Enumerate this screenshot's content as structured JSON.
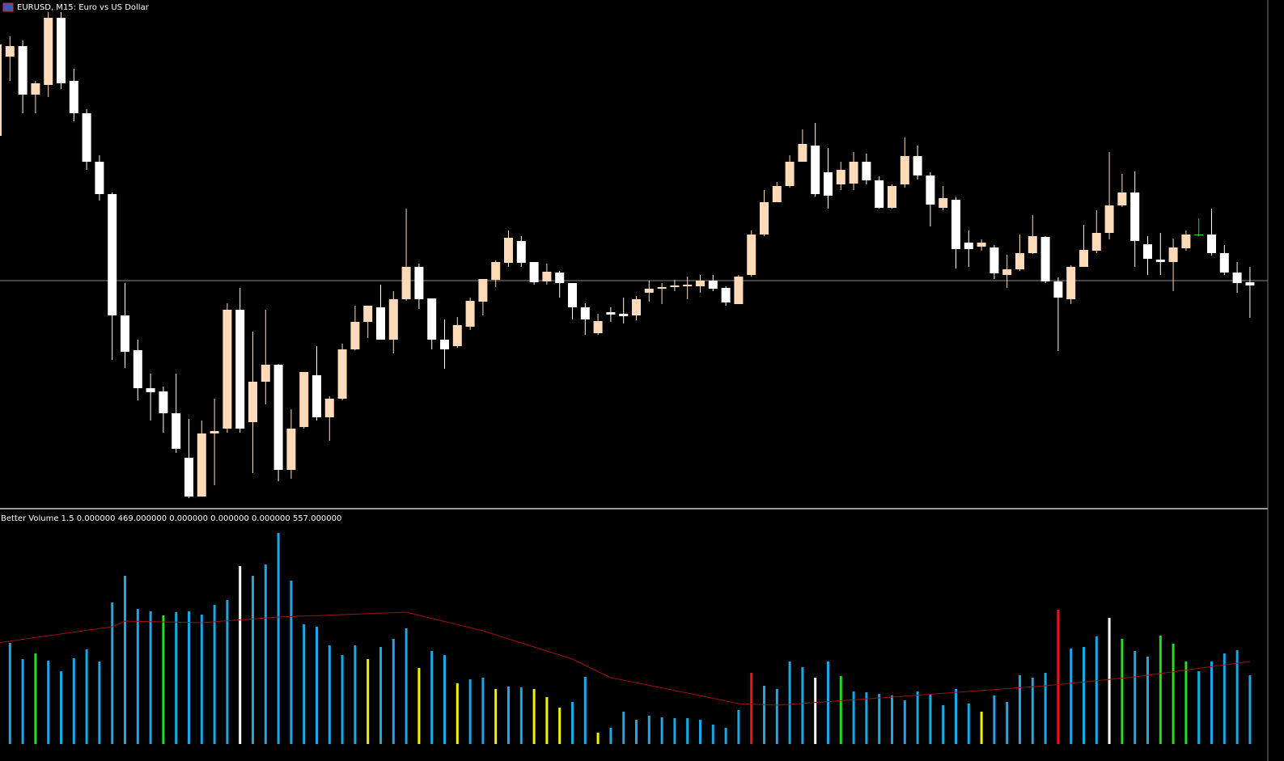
{
  "chart_data": [
    {
      "type": "candlestick",
      "title": "EURUSD, M15:  Euro vs US Dollar",
      "ylim": [
        0,
        630
      ],
      "up_color": "#ffdab9",
      "down_color": "#ffffff",
      "doji_color": "#22dd22",
      "price_line": 283,
      "candles": [
        [
          462,
          585,
          462,
          575
        ],
        [
          560,
          585,
          530,
          573
        ],
        [
          573,
          580,
          490,
          513
        ],
        [
          513,
          530,
          490,
          527
        ],
        [
          525,
          615,
          510,
          608
        ],
        [
          608,
          615,
          520,
          527
        ],
        [
          530,
          545,
          480,
          490
        ],
        [
          490,
          495,
          420,
          430
        ],
        [
          430,
          438,
          382,
          390
        ],
        [
          390,
          392,
          185,
          240
        ],
        [
          240,
          280,
          175,
          195
        ],
        [
          197,
          210,
          135,
          150
        ],
        [
          150,
          168,
          110,
          145
        ],
        [
          146,
          152,
          95,
          119
        ],
        [
          119,
          168,
          70,
          75
        ],
        [
          64,
          112,
          14,
          16
        ],
        [
          16,
          110,
          16,
          94
        ],
        [
          94,
          137,
          30,
          97
        ],
        [
          100,
          255,
          95,
          247
        ],
        [
          247,
          274,
          95,
          100
        ],
        [
          108,
          220,
          45,
          158
        ],
        [
          158,
          247,
          130,
          179
        ],
        [
          179,
          180,
          35,
          49
        ],
        [
          49,
          124,
          38,
          100
        ],
        [
          102,
          170,
          100,
          170
        ],
        [
          166,
          202,
          110,
          114
        ],
        [
          114,
          140,
          85,
          137
        ],
        [
          137,
          205,
          135,
          198
        ],
        [
          198,
          252,
          197,
          232
        ],
        [
          232,
          252,
          212,
          252
        ],
        [
          250,
          278,
          210,
          210
        ],
        [
          210,
          270,
          193,
          260
        ],
        [
          260,
          372,
          258,
          300
        ],
        [
          300,
          304,
          248,
          260
        ],
        [
          261,
          261,
          198,
          210
        ],
        [
          210,
          235,
          174,
          198
        ],
        [
          202,
          238,
          200,
          228
        ],
        [
          226,
          262,
          222,
          258
        ],
        [
          257,
          285,
          240,
          285
        ],
        [
          284,
          308,
          275,
          306
        ],
        [
          305,
          345,
          300,
          336
        ],
        [
          332,
          338,
          300,
          305
        ],
        [
          306,
          306,
          278,
          281
        ],
        [
          282,
          304,
          278,
          294
        ],
        [
          293,
          295,
          262,
          280
        ],
        [
          280,
          280,
          235,
          250
        ],
        [
          250,
          255,
          216,
          235
        ],
        [
          218,
          242,
          216,
          233
        ],
        [
          244,
          250,
          232,
          241
        ],
        [
          242,
          262,
          230,
          239
        ],
        [
          240,
          264,
          234,
          260
        ],
        [
          268,
          283,
          257,
          273
        ],
        [
          273,
          280,
          254,
          275
        ],
        [
          275,
          284,
          270,
          277
        ],
        [
          276,
          288,
          260,
          278
        ],
        [
          276,
          290,
          268,
          283
        ],
        [
          283,
          290,
          270,
          273
        ],
        [
          274,
          276,
          252,
          256
        ],
        [
          254,
          290,
          254,
          288
        ],
        [
          290,
          345,
          288,
          340
        ],
        [
          340,
          395,
          338,
          380
        ],
        [
          380,
          405,
          380,
          400
        ],
        [
          400,
          438,
          398,
          430
        ],
        [
          430,
          470,
          430,
          452
        ],
        [
          450,
          478,
          387,
          390
        ],
        [
          417,
          447,
          372,
          388
        ],
        [
          402,
          430,
          395,
          420
        ],
        [
          403,
          442,
          395,
          430
        ],
        [
          430,
          440,
          402,
          407
        ],
        [
          407,
          412,
          372,
          373
        ],
        [
          373,
          402,
          372,
          400
        ],
        [
          402,
          460,
          398,
          437
        ],
        [
          437,
          450,
          408,
          413
        ],
        [
          413,
          417,
          350,
          377
        ],
        [
          373,
          400,
          370,
          385
        ],
        [
          383,
          386,
          298,
          322
        ],
        [
          330,
          345,
          300,
          322
        ],
        [
          325,
          334,
          320,
          330
        ],
        [
          324,
          327,
          285,
          292
        ],
        [
          290,
          315,
          274,
          297
        ],
        [
          297,
          340,
          295,
          317
        ],
        [
          317,
          364,
          316,
          338
        ],
        [
          337,
          338,
          280,
          282
        ],
        [
          282,
          287,
          196,
          262
        ],
        [
          260,
          302,
          254,
          300
        ],
        [
          300,
          352,
          300,
          321
        ],
        [
          320,
          370,
          317,
          342
        ],
        [
          342,
          442,
          334,
          376
        ],
        [
          376,
          415,
          374,
          392
        ],
        [
          392,
          418,
          300,
          332
        ],
        [
          328,
          338,
          290,
          310
        ],
        [
          309,
          342,
          290,
          306
        ],
        [
          306,
          335,
          270,
          324
        ],
        [
          323,
          345,
          320,
          340
        ],
        [
          340,
          360,
          338,
          340
        ],
        [
          340,
          372,
          314,
          317
        ],
        [
          317,
          327,
          290,
          293
        ],
        [
          293,
          306,
          268,
          280
        ],
        [
          281,
          300,
          237,
          277
        ]
      ]
    },
    {
      "type": "volume",
      "title": "Better Volume 1.5 0.000000 469.000000 0.000000 0.000000 0.000000 557.000000",
      "ylim": [
        0,
        288
      ],
      "values": [
        null,
        125,
        105,
        112,
        103,
        90,
        106,
        117,
        102,
        175,
        208,
        167,
        164,
        159,
        163,
        164,
        160,
        172,
        178,
        220,
        208,
        222,
        261,
        202,
        148,
        145,
        122,
        110,
        122,
        105,
        120,
        130,
        143,
        94,
        115,
        110,
        75,
        80,
        82,
        68,
        71,
        70,
        68,
        58,
        45,
        52,
        83,
        14,
        20,
        40,
        30,
        35,
        33,
        32,
        32,
        30,
        24,
        20,
        42,
        88,
        72,
        68,
        102,
        95,
        82,
        102,
        84,
        65,
        64,
        62,
        60,
        54,
        65,
        62,
        48,
        68,
        50,
        40,
        60,
        52,
        85,
        82,
        88,
        166,
        118,
        120,
        133,
        156,
        130,
        115,
        108,
        134,
        124,
        102,
        90,
        102,
        112,
        116,
        85
      ],
      "colors": [
        null,
        "#1aa9e6",
        "#1aa9e6",
        "#22dd22",
        "#1aa9e6",
        "#1aa9e6",
        "#1aa9e6",
        "#1aa9e6",
        "#1aa9e6",
        "#1aa9e6",
        "#1aa9e6",
        "#1aa9e6",
        "#1aa9e6",
        "#22dd22",
        "#1aa9e6",
        "#1aa9e6",
        "#1aa9e6",
        "#1aa9e6",
        "#1aa9e6",
        "#ffffff",
        "#1aa9e6",
        "#1aa9e6",
        "#1aa9e6",
        "#1aa9e6",
        "#1aa9e6",
        "#1aa9e6",
        "#1aa9e6",
        "#1aa9e6",
        "#1aa9e6",
        "#f2f200",
        "#1aa9e6",
        "#1aa9e6",
        "#1aa9e6",
        "#f2f200",
        "#1aa9e6",
        "#1aa9e6",
        "#f2f200",
        "#1aa9e6",
        "#1aa9e6",
        "#f2f200",
        "#1aa9e6",
        "#1aa9e6",
        "#f2f200",
        "#f2f200",
        "#f2f200",
        "#1aa9e6",
        "#1aa9e6",
        "#f2f200",
        "#1aa9e6",
        "#1aa9e6",
        "#1aa9e6",
        "#1aa9e6",
        "#1aa9e6",
        "#1aa9e6",
        "#1aa9e6",
        "#1aa9e6",
        "#1aa9e6",
        "#1aa9e6",
        "#1aa9e6",
        "#ee1111",
        "#1aa9e6",
        "#1aa9e6",
        "#1aa9e6",
        "#1aa9e6",
        "#ffffff",
        "#1aa9e6",
        "#22dd22",
        "#1aa9e6",
        "#1aa9e6",
        "#1aa9e6",
        "#1aa9e6",
        "#1aa9e6",
        "#1aa9e6",
        "#1aa9e6",
        "#1aa9e6",
        "#1aa9e6",
        "#1aa9e6",
        "#f2f200",
        "#1aa9e6",
        "#1aa9e6",
        "#1aa9e6",
        "#1aa9e6",
        "#1aa9e6",
        "#ee1111",
        "#1aa9e6",
        "#1aa9e6",
        "#1aa9e6",
        "#ffffff",
        "#22dd22",
        "#1aa9e6",
        "#1aa9e6",
        "#22dd22",
        "#22dd22",
        "#22dd22",
        "#1aa9e6",
        "#1aa9e6",
        "#1aa9e6",
        "#1aa9e6",
        "#1aa9e6"
      ],
      "average": {
        "color": "#a01010",
        "x": [
          0,
          9,
          10,
          16,
          22,
          32,
          38,
          45,
          48,
          54,
          58,
          61,
          70,
          82,
          89,
          98
        ],
        "values": [
          125,
          145,
          152,
          150,
          157,
          163,
          140,
          105,
          82,
          63,
          50,
          48,
          58,
          72,
          83,
          102
        ]
      }
    }
  ]
}
